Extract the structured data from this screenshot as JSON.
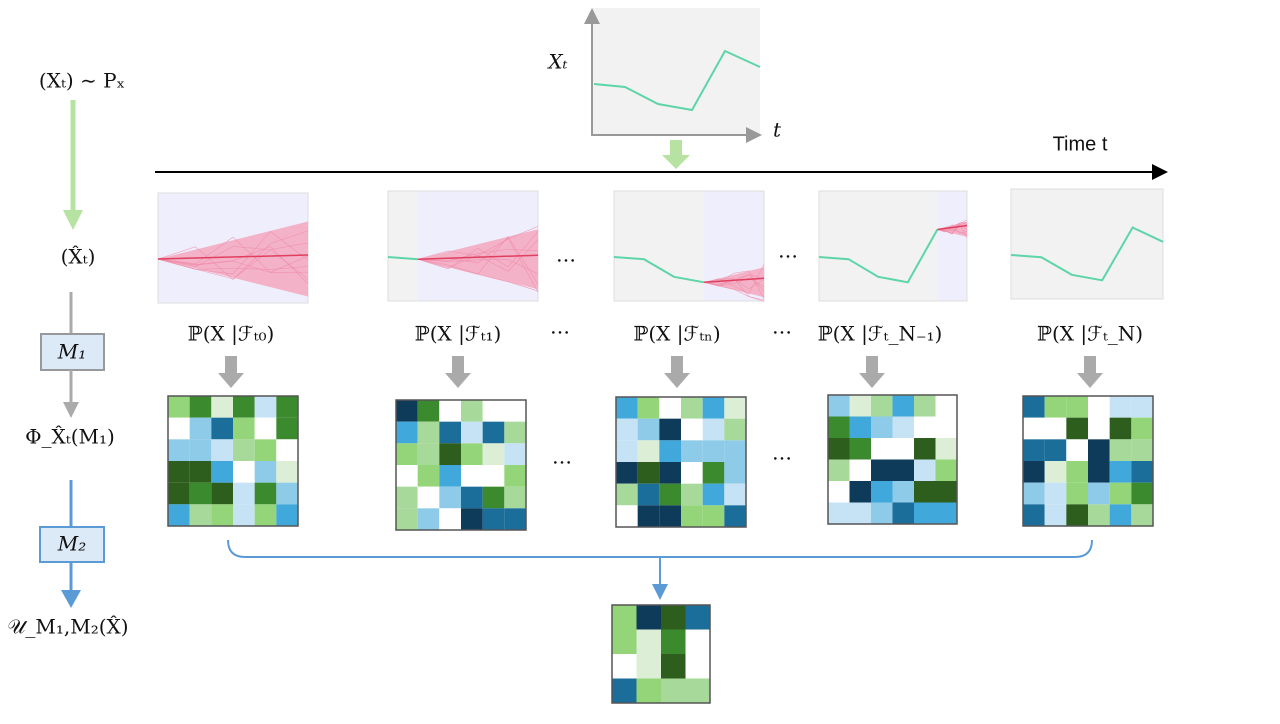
{
  "left": {
    "process": "(Xₜ) ∼ Pₓ",
    "estimate": "(X̂ₜ)",
    "m1": "M₁",
    "phi": "Φ_X̂ₜ(M₁)",
    "m2": "M₂",
    "u": "𝒰_M₁,M₂(X̂)"
  },
  "top": {
    "y_label": "Xₜ",
    "x_label": "t",
    "time_label": "Time  t"
  },
  "steps": [
    {
      "label": "ℙ(X |ℱₜ₀)"
    },
    {
      "label": "ℙ(X |ℱₜ₁)"
    },
    {
      "label": "ℙ(X |ℱₜₙ)"
    },
    {
      "label": "ℙ(X |ℱₜ_N₋₁)"
    },
    {
      "label": "ℙ(X |ℱₜ_N)"
    }
  ],
  "ellipsis": "…"
}
